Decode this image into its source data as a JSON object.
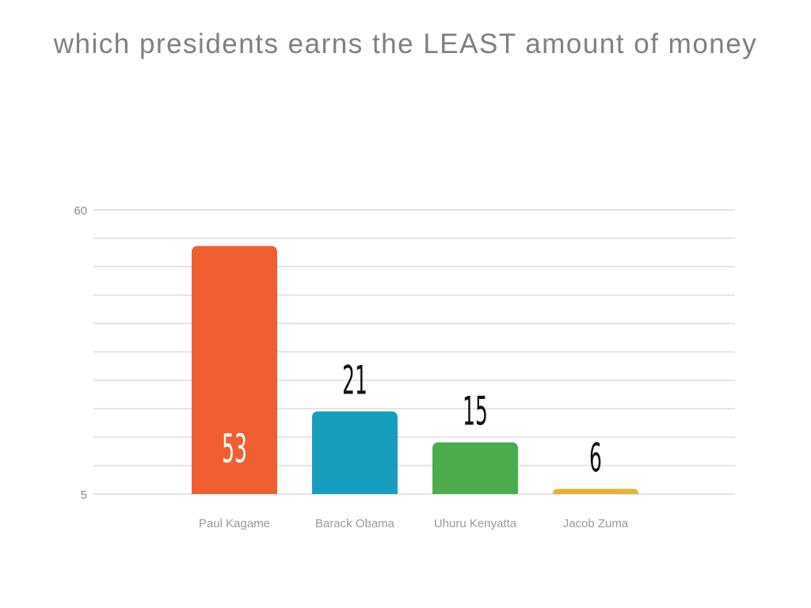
{
  "chart_data": {
    "type": "bar",
    "title": "which presidents earns the LEAST amount of money",
    "categories": [
      "Paul Kagame",
      "Barack Obama",
      "Uhuru Kenyatta",
      "Jacob Zuma"
    ],
    "values": [
      53,
      21,
      15,
      6
    ],
    "colors": [
      "#F05F32",
      "#169FBC",
      "#4AAC4C",
      "#EBB031"
    ],
    "ylim": [
      5,
      60
    ],
    "yticks": [
      "5",
      "60"
    ],
    "grid": true,
    "xlabel": "",
    "ylabel": ""
  }
}
